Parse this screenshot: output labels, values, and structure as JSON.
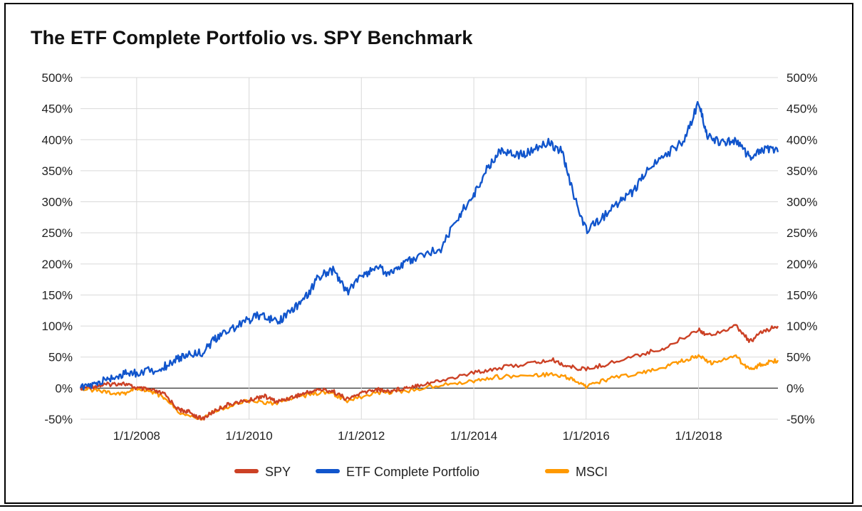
{
  "chart_data": {
    "type": "line",
    "title": "The ETF Complete Portfolio vs. SPY Benchmark",
    "xlabel": "",
    "ylabel": "",
    "x_ticks": [
      "1/1/2008",
      "1/1/2010",
      "1/1/2012",
      "1/1/2014",
      "1/1/2016",
      "1/1/2018"
    ],
    "y_ticks": [
      "500%",
      "450%",
      "400%",
      "350%",
      "300%",
      "250%",
      "200%",
      "150%",
      "100%",
      "50%",
      "0%",
      "-50%"
    ],
    "y_ticks_right": [
      "500%",
      "450%",
      "400%",
      "350%",
      "300%",
      "250%",
      "200%",
      "150%",
      "100%",
      "50%",
      "0%",
      "-50%"
    ],
    "ylim": [
      -50,
      500
    ],
    "xlim": [
      "2007-01-01",
      "2019-06-01"
    ],
    "legend_position": "bottom",
    "grid": true,
    "series": [
      {
        "name": "SPY",
        "color": "#cc4125",
        "points": [
          [
            "2007-01-01",
            0
          ],
          [
            "2007-04-01",
            3
          ],
          [
            "2007-07-01",
            6
          ],
          [
            "2007-10-01",
            8
          ],
          [
            "2008-01-01",
            0
          ],
          [
            "2008-04-01",
            -3
          ],
          [
            "2008-07-01",
            -10
          ],
          [
            "2008-10-01",
            -35
          ],
          [
            "2008-12-01",
            -38
          ],
          [
            "2009-03-01",
            -50
          ],
          [
            "2009-06-01",
            -35
          ],
          [
            "2009-09-01",
            -25
          ],
          [
            "2010-01-01",
            -20
          ],
          [
            "2010-04-01",
            -12
          ],
          [
            "2010-07-01",
            -22
          ],
          [
            "2010-10-01",
            -15
          ],
          [
            "2011-01-01",
            -8
          ],
          [
            "2011-04-01",
            -2
          ],
          [
            "2011-07-01",
            -5
          ],
          [
            "2011-10-01",
            -18
          ],
          [
            "2012-01-01",
            -8
          ],
          [
            "2012-04-01",
            -2
          ],
          [
            "2012-07-01",
            -5
          ],
          [
            "2012-10-01",
            0
          ],
          [
            "2013-01-01",
            5
          ],
          [
            "2013-06-01",
            12
          ],
          [
            "2014-01-01",
            25
          ],
          [
            "2014-06-01",
            32
          ],
          [
            "2015-01-01",
            40
          ],
          [
            "2015-06-01",
            45
          ],
          [
            "2015-09-01",
            35
          ],
          [
            "2016-01-01",
            30
          ],
          [
            "2016-06-01",
            40
          ],
          [
            "2017-01-01",
            55
          ],
          [
            "2017-06-01",
            65
          ],
          [
            "2018-01-01",
            95
          ],
          [
            "2018-03-01",
            85
          ],
          [
            "2018-09-01",
            100
          ],
          [
            "2018-12-01",
            75
          ],
          [
            "2019-03-01",
            92
          ],
          [
            "2019-06-01",
            100
          ]
        ]
      },
      {
        "name": "ETF Complete Portfolio",
        "color": "#1155cc",
        "points": [
          [
            "2007-01-01",
            0
          ],
          [
            "2007-04-01",
            5
          ],
          [
            "2007-07-01",
            15
          ],
          [
            "2007-10-01",
            22
          ],
          [
            "2008-01-01",
            25
          ],
          [
            "2008-06-01",
            30
          ],
          [
            "2008-09-01",
            45
          ],
          [
            "2008-12-01",
            55
          ],
          [
            "2009-03-01",
            58
          ],
          [
            "2009-06-01",
            80
          ],
          [
            "2009-09-01",
            95
          ],
          [
            "2010-01-01",
            110
          ],
          [
            "2010-04-01",
            120
          ],
          [
            "2010-07-01",
            105
          ],
          [
            "2010-10-01",
            125
          ],
          [
            "2011-01-01",
            145
          ],
          [
            "2011-04-01",
            180
          ],
          [
            "2011-07-01",
            190
          ],
          [
            "2011-10-01",
            155
          ],
          [
            "2012-01-01",
            180
          ],
          [
            "2012-04-01",
            195
          ],
          [
            "2012-07-01",
            185
          ],
          [
            "2012-10-01",
            200
          ],
          [
            "2013-01-01",
            210
          ],
          [
            "2013-06-01",
            225
          ],
          [
            "2013-10-01",
            280
          ],
          [
            "2014-01-01",
            310
          ],
          [
            "2014-04-01",
            355
          ],
          [
            "2014-07-01",
            385
          ],
          [
            "2014-10-01",
            375
          ],
          [
            "2015-01-01",
            380
          ],
          [
            "2015-05-01",
            395
          ],
          [
            "2015-08-01",
            380
          ],
          [
            "2015-10-01",
            320
          ],
          [
            "2016-01-01",
            255
          ],
          [
            "2016-04-01",
            270
          ],
          [
            "2016-08-01",
            300
          ],
          [
            "2016-11-01",
            315
          ],
          [
            "2017-02-01",
            350
          ],
          [
            "2017-06-01",
            375
          ],
          [
            "2017-10-01",
            400
          ],
          [
            "2018-01-01",
            460
          ],
          [
            "2018-03-01",
            405
          ],
          [
            "2018-06-01",
            395
          ],
          [
            "2018-09-01",
            400
          ],
          [
            "2018-12-01",
            370
          ],
          [
            "2019-03-01",
            385
          ],
          [
            "2019-06-01",
            380
          ]
        ]
      },
      {
        "name": "MSCI",
        "color": "#ff9900",
        "points": [
          [
            "2007-01-01",
            0
          ],
          [
            "2007-06-01",
            -5
          ],
          [
            "2007-10-01",
            -10
          ],
          [
            "2008-01-01",
            0
          ],
          [
            "2008-04-01",
            -5
          ],
          [
            "2008-07-01",
            -15
          ],
          [
            "2008-10-01",
            -40
          ],
          [
            "2009-03-01",
            -50
          ],
          [
            "2009-06-01",
            -35
          ],
          [
            "2010-01-01",
            -20
          ],
          [
            "2010-06-01",
            -25
          ],
          [
            "2011-01-01",
            -12
          ],
          [
            "2011-06-01",
            -5
          ],
          [
            "2011-10-01",
            -20
          ],
          [
            "2012-04-01",
            -8
          ],
          [
            "2012-10-01",
            -5
          ],
          [
            "2013-06-01",
            5
          ],
          [
            "2014-01-01",
            12
          ],
          [
            "2014-06-01",
            18
          ],
          [
            "2015-01-01",
            20
          ],
          [
            "2015-06-01",
            22
          ],
          [
            "2015-10-01",
            15
          ],
          [
            "2016-01-01",
            3
          ],
          [
            "2016-06-01",
            15
          ],
          [
            "2017-01-01",
            25
          ],
          [
            "2017-06-01",
            35
          ],
          [
            "2017-10-01",
            45
          ],
          [
            "2018-01-01",
            52
          ],
          [
            "2018-04-01",
            40
          ],
          [
            "2018-09-01",
            50
          ],
          [
            "2018-12-01",
            30
          ],
          [
            "2019-03-01",
            40
          ],
          [
            "2019-06-01",
            45
          ]
        ]
      }
    ]
  }
}
